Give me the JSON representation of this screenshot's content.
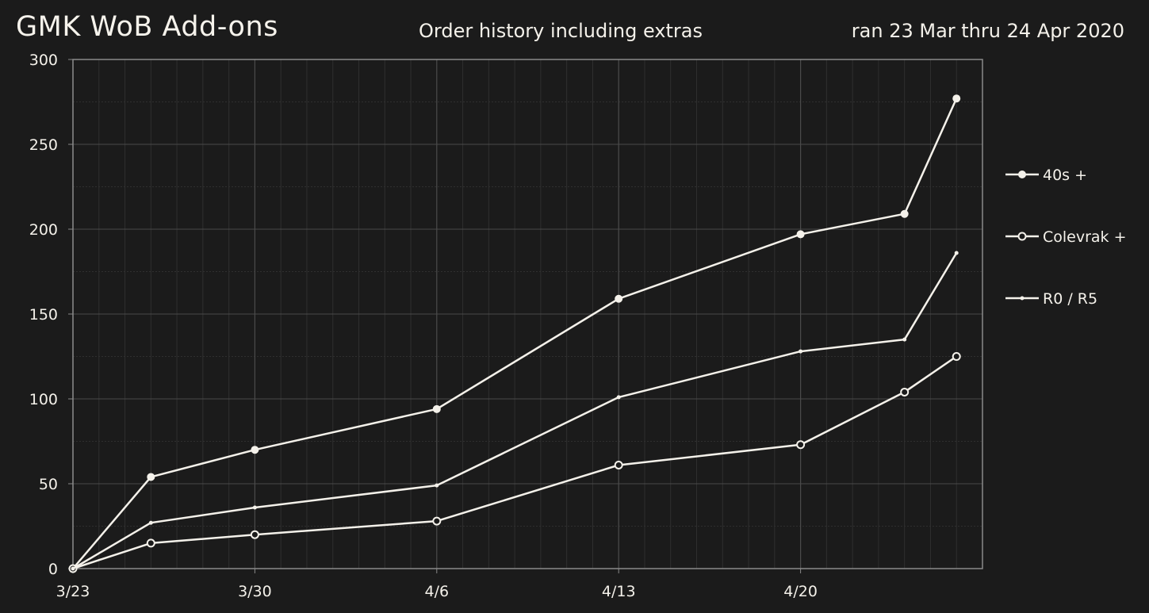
{
  "header": {
    "title": "GMK WoB Add-ons",
    "subtitle": "Order history including extras",
    "date_range": "ran 23 Mar thru 24 Apr 2020"
  },
  "colors": {
    "background": "#1b1b1b",
    "line": "#f4f1ea",
    "grid_major": "#4a4a4a",
    "grid_minor": "#2f2f2f",
    "axis": "#8a8a8a"
  },
  "chart_data": {
    "type": "line",
    "title": "GMK WoB Add-ons",
    "subtitle": "Order history including extras",
    "x_unit": "day",
    "x_ticks": [
      {
        "day": "2020-03-23",
        "label": "3/23"
      },
      {
        "day": "2020-03-30",
        "label": "3/30"
      },
      {
        "day": "2020-04-06",
        "label": "4/6"
      },
      {
        "day": "2020-04-13",
        "label": "4/13"
      },
      {
        "day": "2020-04-20",
        "label": "4/20"
      }
    ],
    "xlim": [
      "2020-03-23",
      "2020-04-27"
    ],
    "ylim": [
      0,
      300
    ],
    "y_ticks": [
      0,
      50,
      100,
      150,
      200,
      250,
      300
    ],
    "grid": true,
    "legend_position": "right",
    "series": [
      {
        "name": "40s +",
        "marker": "filled-circle",
        "points": [
          {
            "x": "2020-03-23",
            "y": 0
          },
          {
            "x": "2020-03-26",
            "y": 54
          },
          {
            "x": "2020-03-30",
            "y": 70
          },
          {
            "x": "2020-04-06",
            "y": 94
          },
          {
            "x": "2020-04-13",
            "y": 159
          },
          {
            "x": "2020-04-20",
            "y": 197
          },
          {
            "x": "2020-04-24",
            "y": 209
          },
          {
            "x": "2020-04-26",
            "y": 277
          }
        ]
      },
      {
        "name": "Colevrak +",
        "marker": "open-circle",
        "points": [
          {
            "x": "2020-03-23",
            "y": 0
          },
          {
            "x": "2020-03-26",
            "y": 15
          },
          {
            "x": "2020-03-30",
            "y": 20
          },
          {
            "x": "2020-04-06",
            "y": 28
          },
          {
            "x": "2020-04-13",
            "y": 61
          },
          {
            "x": "2020-04-20",
            "y": 73
          },
          {
            "x": "2020-04-24",
            "y": 104
          },
          {
            "x": "2020-04-26",
            "y": 125
          }
        ]
      },
      {
        "name": "R0 / R5",
        "marker": "small-dot",
        "points": [
          {
            "x": "2020-03-23",
            "y": 0
          },
          {
            "x": "2020-03-26",
            "y": 27
          },
          {
            "x": "2020-03-30",
            "y": 36
          },
          {
            "x": "2020-04-06",
            "y": 49
          },
          {
            "x": "2020-04-13",
            "y": 101
          },
          {
            "x": "2020-04-20",
            "y": 128
          },
          {
            "x": "2020-04-24",
            "y": 135
          },
          {
            "x": "2020-04-26",
            "y": 186
          }
        ]
      }
    ]
  }
}
